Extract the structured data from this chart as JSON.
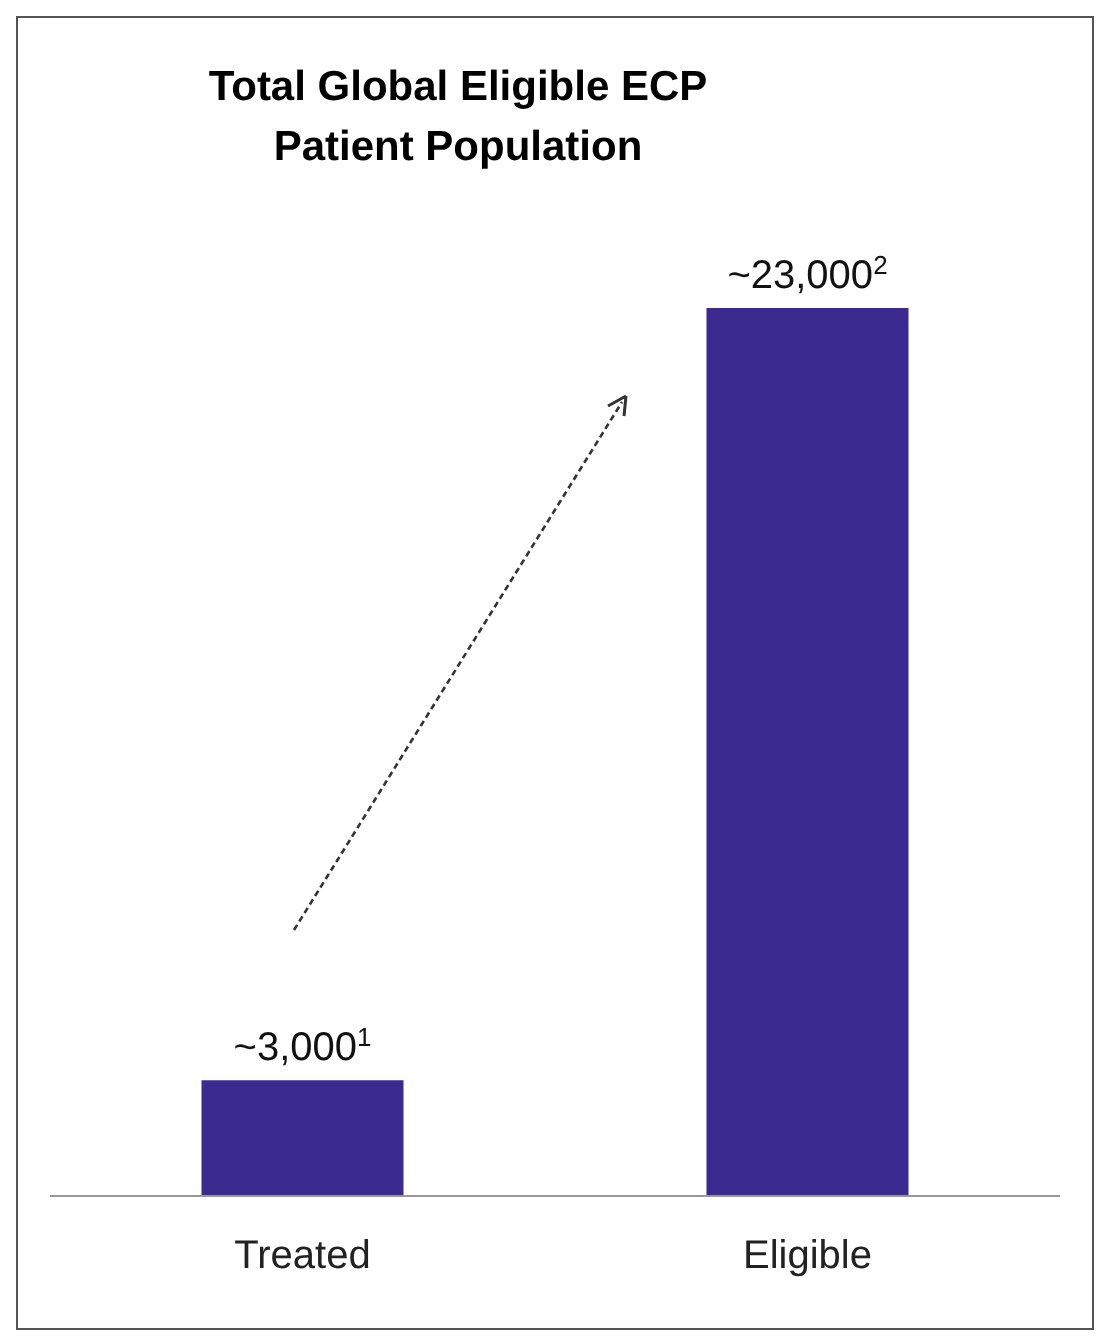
{
  "chart_data": {
    "type": "bar",
    "title": "Total Global Eligible ECP\nPatient Population",
    "categories": [
      "Treated",
      "Eligible"
    ],
    "values": [
      3000,
      23000
    ],
    "color": "#3b2a8f",
    "value_labels": [
      "~3,000$^{1}$",
      "~23,000$^{2}$"
    ],
    "grid": false,
    "legend": false
  }
}
